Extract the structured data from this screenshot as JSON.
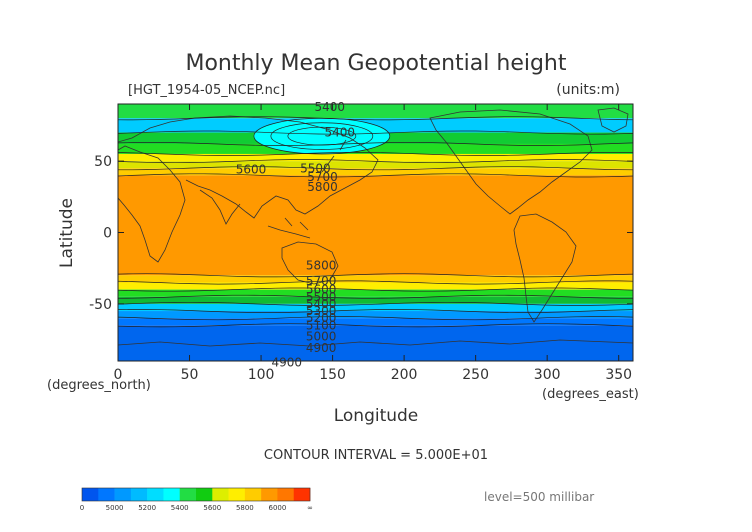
{
  "figure": {
    "title": "Monthly Mean Geopotential height",
    "file_label": "[HGT_1954-05_NCEP.nc]",
    "units_label": "(units:m)",
    "contour_interval": "CONTOUR INTERVAL = 5.000E+01",
    "level_label": "level=500 millibar",
    "x_axis_label": "Longitude",
    "y_axis_label": "Latitude",
    "x_unit_label": "(degrees_east)",
    "y_unit_label": "(degrees_north)"
  },
  "chart_data": {
    "type": "heatmap",
    "title": "Monthly Mean Geopotential height",
    "xlabel": "Longitude",
    "ylabel": "Latitude",
    "xlim": [
      0,
      360
    ],
    "ylim": [
      -90,
      90
    ],
    "x_ticks": [
      "0",
      "50",
      "100",
      "150",
      "200",
      "250",
      "300",
      "350"
    ],
    "y_ticks": [
      "50",
      "0",
      "-50"
    ],
    "x_tick_values": [
      0,
      50,
      100,
      150,
      200,
      250,
      300,
      350
    ],
    "y_tick_values": [
      50,
      0,
      -50
    ],
    "value_unit": "m",
    "contour_interval": 50,
    "bands": [
      {
        "lat_from": 90,
        "lat_to": 80,
        "color": "#22dd44"
      },
      {
        "lat_from": 80,
        "lat_to": 70,
        "color": "#00ccff"
      },
      {
        "lat_from": 70,
        "lat_to": 62,
        "color": "#11cc33"
      },
      {
        "lat_from": 62,
        "lat_to": 55,
        "color": "#22dd22"
      },
      {
        "lat_from": 55,
        "lat_to": 50,
        "color": "#ffee00"
      },
      {
        "lat_from": 50,
        "lat_to": 45,
        "color": "#dde400"
      },
      {
        "lat_from": 45,
        "lat_to": 40,
        "color": "#ffcc00"
      },
      {
        "lat_from": 40,
        "lat_to": -30,
        "color": "#ff9900"
      },
      {
        "lat_from": -30,
        "lat_to": -35,
        "color": "#ffcc00"
      },
      {
        "lat_from": -35,
        "lat_to": -40,
        "color": "#ffee00"
      },
      {
        "lat_from": -40,
        "lat_to": -45,
        "color": "#22dd22"
      },
      {
        "lat_from": -45,
        "lat_to": -50,
        "color": "#11bb33"
      },
      {
        "lat_from": -50,
        "lat_to": -55,
        "color": "#00ccff"
      },
      {
        "lat_from": -55,
        "lat_to": -60,
        "color": "#0099ff"
      },
      {
        "lat_from": -60,
        "lat_to": -65,
        "color": "#0077ff"
      },
      {
        "lat_from": -65,
        "lat_to": -90,
        "color": "#0066ee"
      }
    ],
    "low_center": {
      "lon_from": 95,
      "lon_to": 190,
      "lat_from": 55,
      "lat_to": 80,
      "color": "#00ffff",
      "label": "5400"
    },
    "contour_labels": [
      {
        "text": "5400",
        "lon": 148,
        "lat": 88
      },
      {
        "text": "5400",
        "lon": 155,
        "lat": 70
      },
      {
        "text": "5600",
        "lon": 93,
        "lat": 44
      },
      {
        "text": "5500",
        "lon": 138,
        "lat": 45
      },
      {
        "text": "5700",
        "lon": 143,
        "lat": 39
      },
      {
        "text": "5800",
        "lon": 143,
        "lat": 32
      },
      {
        "text": "5800",
        "lon": 142,
        "lat": -23
      },
      {
        "text": "5700",
        "lon": 142,
        "lat": -34
      },
      {
        "text": "5600",
        "lon": 142,
        "lat": -40
      },
      {
        "text": "5500",
        "lon": 142,
        "lat": -45
      },
      {
        "text": "5400",
        "lon": 142,
        "lat": -50
      },
      {
        "text": "5300",
        "lon": 142,
        "lat": -55
      },
      {
        "text": "5200",
        "lon": 142,
        "lat": -60
      },
      {
        "text": "5100",
        "lon": 142,
        "lat": -65
      },
      {
        "text": "5000",
        "lon": 142,
        "lat": -73
      },
      {
        "text": "4900",
        "lon": 142,
        "lat": -81
      },
      {
        "text": "4900",
        "lon": 118,
        "lat": -91
      }
    ],
    "colorbar": {
      "colors": [
        "#0055ee",
        "#0077ff",
        "#0099ff",
        "#00bbff",
        "#00ddff",
        "#00ffff",
        "#22dd44",
        "#11cc11",
        "#ddee00",
        "#ffee00",
        "#ffcc00",
        "#ff9900",
        "#ff7700",
        "#ff3300"
      ],
      "labels": [
        "0",
        "5000",
        "5200",
        "5400",
        "5600",
        "5800",
        "6000",
        "∞"
      ]
    }
  }
}
